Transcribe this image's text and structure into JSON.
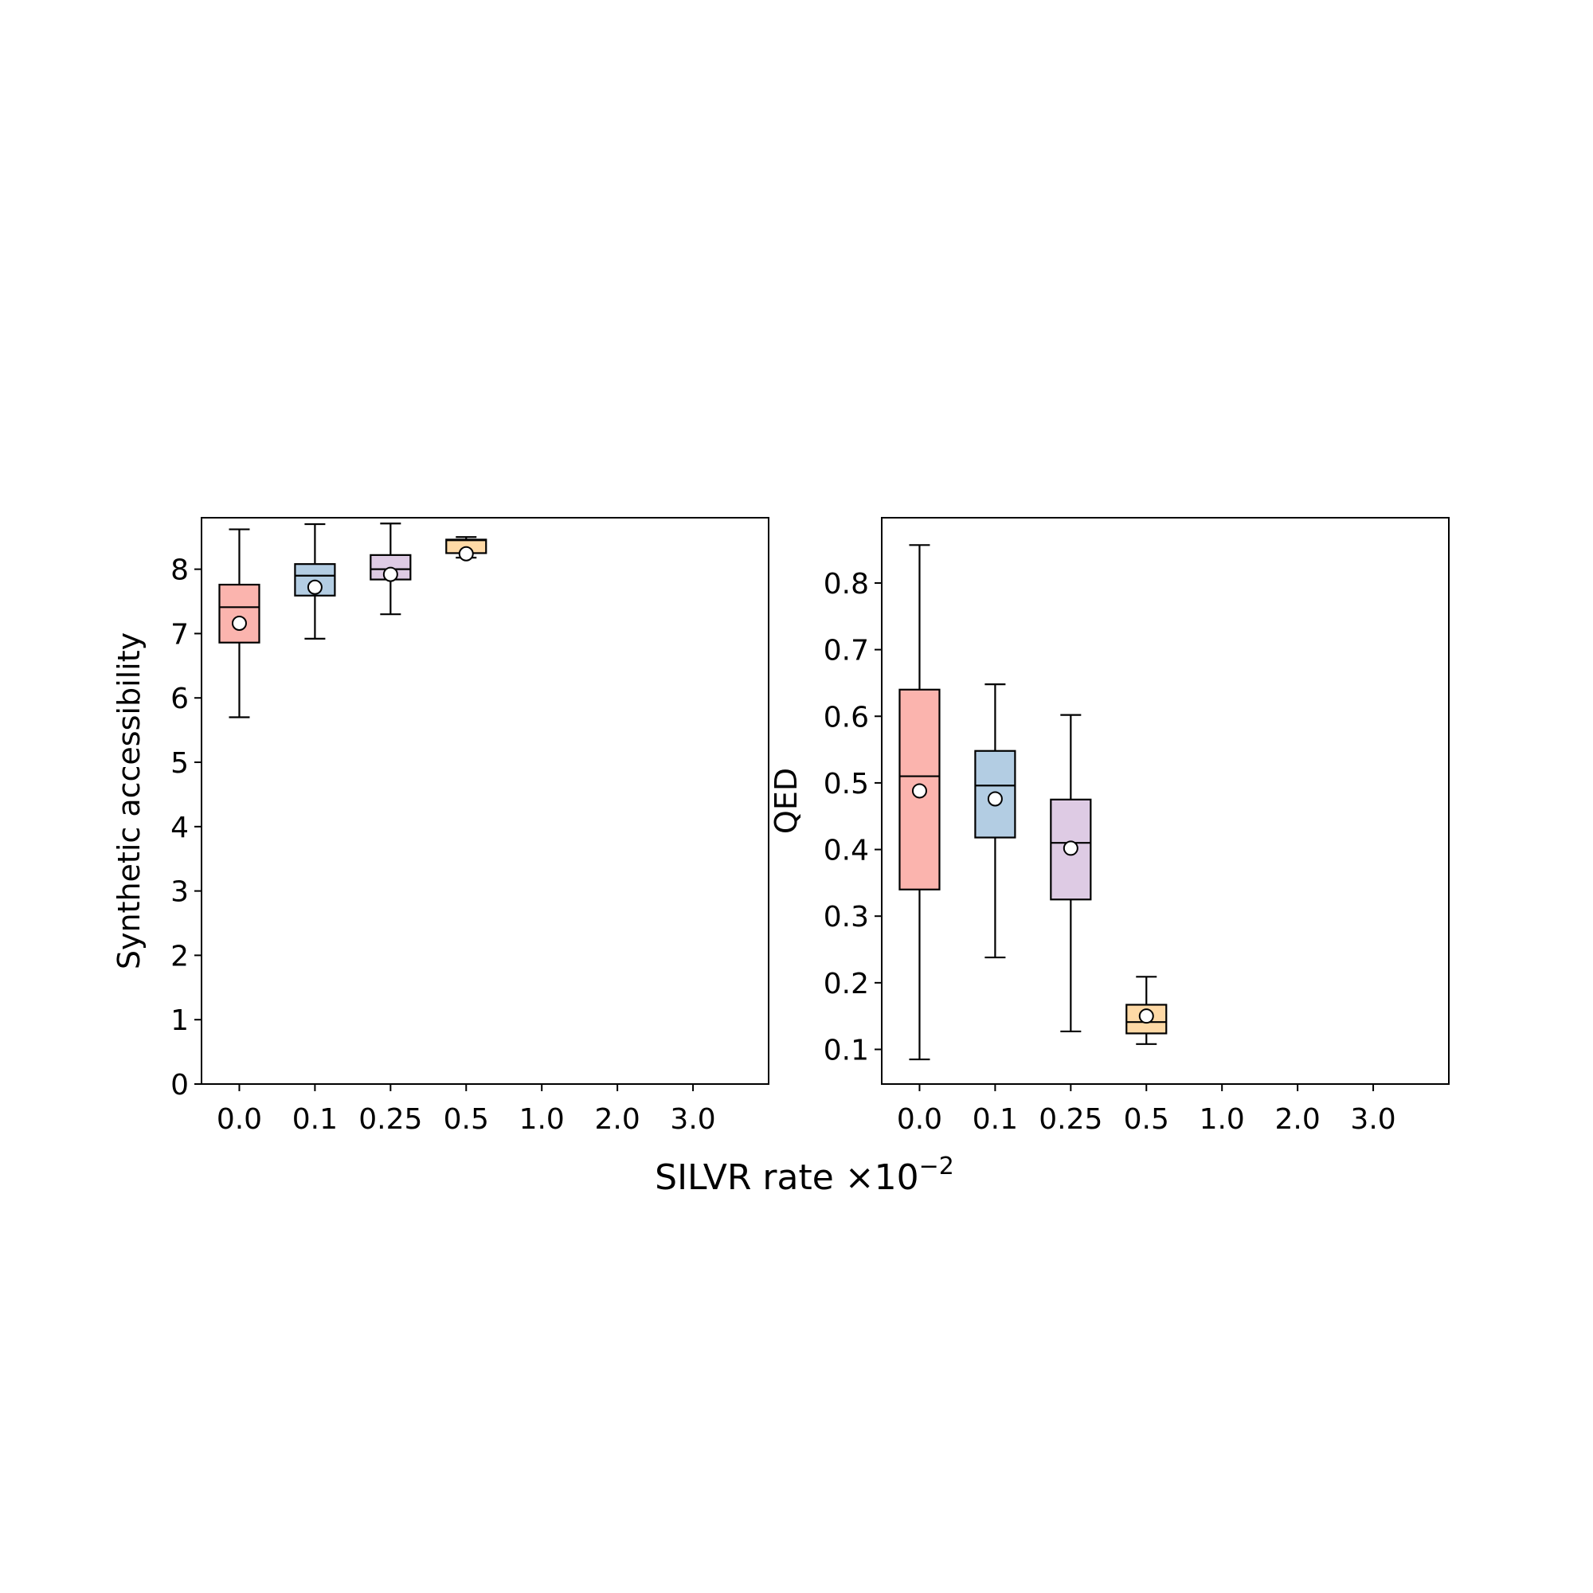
{
  "figure": {
    "xlabel": "SILVR rate ×10",
    "xlabel_exponent": "−2"
  },
  "chart_data": [
    {
      "type": "box",
      "ylabel": "Synthetic accessibility",
      "categories": [
        "0.0",
        "0.1",
        "0.25",
        "0.5",
        "1.0",
        "2.0",
        "3.0"
      ],
      "ylim": [
        0,
        8.8
      ],
      "yticks": [
        0,
        1,
        2,
        3,
        4,
        5,
        6,
        7,
        8
      ],
      "grid": false,
      "boxes": [
        {
          "category": "0.0",
          "whisker_low": 5.7,
          "q1": 6.86,
          "median": 7.41,
          "q3": 7.76,
          "whisker_high": 8.62,
          "mean": 7.16,
          "color": "#fbb4ae"
        },
        {
          "category": "0.1",
          "whisker_low": 6.92,
          "q1": 7.59,
          "median": 7.9,
          "q3": 8.08,
          "whisker_high": 8.7,
          "mean": 7.72,
          "color": "#b3cde3"
        },
        {
          "category": "0.25",
          "whisker_low": 7.3,
          "q1": 7.84,
          "median": 8.0,
          "q3": 8.22,
          "whisker_high": 8.71,
          "mean": 7.92,
          "color": "#decbe4"
        },
        {
          "category": "0.5",
          "whisker_low": 8.18,
          "q1": 8.25,
          "median": 8.45,
          "q3": 8.46,
          "whisker_high": 8.5,
          "mean": 8.24,
          "color": "#fed9a6"
        }
      ]
    },
    {
      "type": "box",
      "ylabel": "QED",
      "categories": [
        "0.0",
        "0.1",
        "0.25",
        "0.5",
        "1.0",
        "2.0",
        "3.0"
      ],
      "ylim": [
        0.048,
        0.898
      ],
      "yticks": [
        0.1,
        0.2,
        0.3,
        0.4,
        0.5,
        0.6,
        0.7,
        0.8
      ],
      "grid": false,
      "boxes": [
        {
          "category": "0.0",
          "whisker_low": 0.085,
          "q1": 0.34,
          "median": 0.51,
          "q3": 0.64,
          "whisker_high": 0.857,
          "mean": 0.488,
          "color": "#fbb4ae"
        },
        {
          "category": "0.1",
          "whisker_low": 0.238,
          "q1": 0.418,
          "median": 0.496,
          "q3": 0.548,
          "whisker_high": 0.648,
          "mean": 0.476,
          "color": "#b3cde3"
        },
        {
          "category": "0.25",
          "whisker_low": 0.127,
          "q1": 0.325,
          "median": 0.41,
          "q3": 0.475,
          "whisker_high": 0.602,
          "mean": 0.402,
          "color": "#decbe4"
        },
        {
          "category": "0.5",
          "whisker_low": 0.108,
          "q1": 0.124,
          "median": 0.141,
          "q3": 0.167,
          "whisker_high": 0.209,
          "mean": 0.15,
          "color": "#fed9a6"
        }
      ]
    }
  ]
}
